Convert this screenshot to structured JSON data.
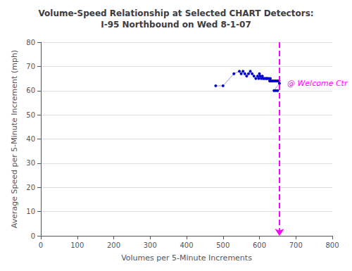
{
  "chart_data": {
    "type": "scatter",
    "title": "Volume-Speed Relationship at Selected CHART Detectors:\nI-95 Northbound on Wed 8-1-07",
    "x_label": "Volumes per 5-Minute Increments",
    "y_label": "Average Speed per 5-Minute Increment (mph)",
    "x": [
      480,
      500,
      530,
      545,
      550,
      555,
      560,
      565,
      570,
      575,
      580,
      585,
      590,
      595,
      598,
      600,
      602,
      605,
      608,
      610,
      612,
      615,
      618,
      620,
      622,
      625,
      628,
      630,
      632,
      635,
      638,
      640,
      642,
      645,
      648,
      650,
      652,
      654,
      655,
      640,
      645,
      650
    ],
    "values": [
      62,
      62,
      67,
      68,
      67,
      68,
      67,
      66,
      67,
      68,
      67,
      66,
      65,
      66,
      65,
      67,
      66,
      65,
      66,
      65,
      65,
      65,
      65,
      65,
      65,
      65,
      64,
      65,
      64,
      64,
      64,
      64,
      64,
      64,
      64,
      64,
      64,
      64,
      63,
      60,
      60,
      60
    ],
    "color": "#0000cc",
    "marker": "circle",
    "line_style": "solid",
    "xlim": [
      0,
      800
    ],
    "ylim": [
      0,
      80
    ],
    "xticks": [
      0,
      100,
      200,
      300,
      400,
      500,
      600,
      700,
      800
    ],
    "yticks": [
      0,
      10,
      20,
      30,
      40,
      50,
      60,
      70,
      80
    ],
    "grid": true,
    "annotations": [
      {
        "text": "@ Welcome Ctr",
        "x": 655,
        "color": "#ff00ff",
        "line_style": "dashed"
      }
    ]
  }
}
